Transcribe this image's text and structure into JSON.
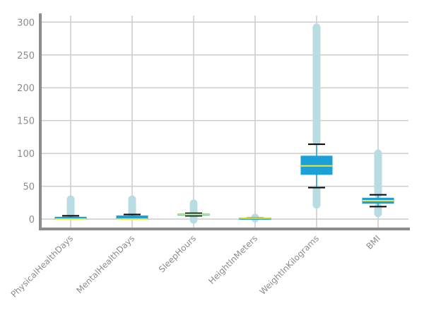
{
  "chart_data": {
    "type": "box",
    "title": "",
    "xlabel": "",
    "ylabel": "",
    "ylim": [
      -15,
      310
    ],
    "yticks": [
      0,
      50,
      100,
      150,
      200,
      250,
      300
    ],
    "grid": true,
    "legend": "none",
    "colors": {
      "box": "#1ba1d6",
      "median": "#f0e442",
      "outlier": "#b9dce2",
      "whisker_cap": "#000000",
      "grid": "#cccccc",
      "axis": "#8c8c8c"
    },
    "categories": [
      "PhysicalHealthDays",
      "MentalHealthDays",
      "SleepHours",
      "HeightInMeters",
      "WeightInKilograms",
      "BMI"
    ],
    "boxes": [
      {
        "name": "PhysicalHealthDays",
        "whisker_low": 0,
        "q1": 0,
        "median": 0,
        "q3": 3,
        "whisker_high": 5,
        "outliers_low": [],
        "outliers_high": [
          7,
          30
        ]
      },
      {
        "name": "MentalHealthDays",
        "whisker_low": 0,
        "q1": 0,
        "median": 0,
        "q3": 5,
        "whisker_high": 7,
        "outliers_low": [],
        "outliers_high": [
          8,
          30
        ]
      },
      {
        "name": "SleepHours",
        "whisker_low": 5,
        "q1": 6,
        "median": 7,
        "q3": 8,
        "whisker_high": 9,
        "outliers_low": [
          -1,
          4
        ],
        "outliers_high": [
          10,
          24
        ]
      },
      {
        "name": "HeightInMeters",
        "whisker_low": 1.4,
        "q1": 1.6,
        "median": 1.7,
        "q3": 1.8,
        "whisker_high": 2.0,
        "outliers_low": [
          0.9,
          1.3
        ],
        "outliers_high": [
          2.1,
          2.4
        ]
      },
      {
        "name": "WeightInKilograms",
        "whisker_low": 48,
        "q1": 68,
        "median": 81,
        "q3": 96,
        "whisker_high": 114,
        "outliers_low": [
          22,
          46
        ],
        "outliers_high": [
          118,
          292
        ]
      },
      {
        "name": "BMI",
        "whisker_low": 19,
        "q1": 24,
        "median": 28,
        "q3": 32,
        "whisker_high": 37,
        "outliers_low": [
          9,
          18
        ],
        "outliers_high": [
          38,
          100
        ]
      }
    ]
  }
}
